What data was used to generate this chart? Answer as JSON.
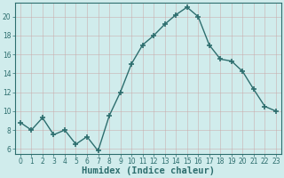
{
  "x": [
    0,
    1,
    2,
    3,
    4,
    5,
    6,
    7,
    8,
    9,
    10,
    11,
    12,
    13,
    14,
    15,
    16,
    17,
    18,
    19,
    20,
    21,
    22,
    23
  ],
  "y": [
    8.8,
    8.0,
    9.3,
    7.5,
    8.0,
    6.5,
    7.3,
    5.8,
    9.5,
    12.0,
    15.0,
    17.0,
    18.0,
    19.2,
    20.2,
    21.0,
    20.0,
    17.0,
    15.5,
    15.3,
    14.2,
    12.3,
    10.5,
    10.0
  ],
  "line_color": "#2d6e6e",
  "marker": "+",
  "marker_size": 4,
  "marker_lw": 1.2,
  "bg_color": "#d0ecec",
  "grid_color": "#b8d8d8",
  "grid_lw": 0.5,
  "xlabel": "Humidex (Indice chaleur)",
  "xlim": [
    -0.5,
    23.5
  ],
  "ylim": [
    5.5,
    21.5
  ],
  "yticks": [
    6,
    8,
    10,
    12,
    14,
    16,
    18,
    20
  ],
  "xticks": [
    0,
    1,
    2,
    3,
    4,
    5,
    6,
    7,
    8,
    9,
    10,
    11,
    12,
    13,
    14,
    15,
    16,
    17,
    18,
    19,
    20,
    21,
    22,
    23
  ],
  "tick_label_fontsize": 5.5,
  "xlabel_fontsize": 7.5,
  "line_width": 1.0
}
